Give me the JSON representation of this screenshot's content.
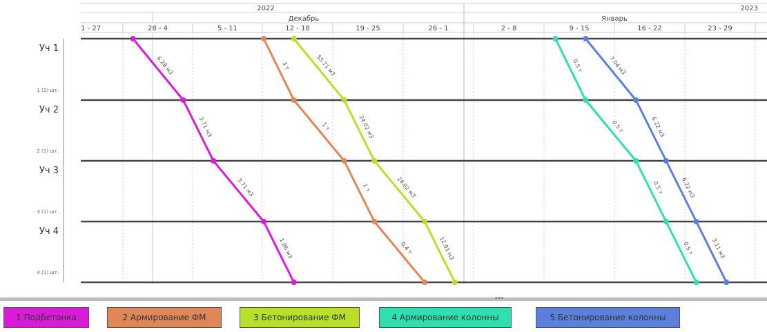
{
  "chart_data": {
    "type": "line",
    "subtype": "cyclogram",
    "timeline": {
      "years": [
        {
          "label": "2022"
        },
        {
          "label": "2023"
        }
      ],
      "months": [
        {
          "label": "Декабрь"
        },
        {
          "label": "Январь"
        }
      ],
      "weeks": [
        "1 - 27",
        "28 - 4",
        "5 - 11",
        "12 - 18",
        "19 - 25",
        "26 - 1",
        "2 - 8",
        "9 - 15",
        "16 - 22",
        "23 - 29"
      ]
    },
    "rows": [
      {
        "label": "Уч 1",
        "count": "1 (1) шт."
      },
      {
        "label": "Уч 2",
        "count": "2 (1) шт."
      },
      {
        "label": "Уч 3",
        "count": "3 (1) шт."
      },
      {
        "label": "Уч 4",
        "count": "4 (1) шт."
      }
    ],
    "series": [
      {
        "name": "1 Подбетонка",
        "color": "#d81cd8",
        "dates": [
          "2022-11-29",
          "2022-12-04",
          "2022-12-07",
          "2022-12-12",
          "2022-12-15"
        ],
        "labels": [
          "6.28 м3",
          "3.71 м3",
          "3.71 м3",
          "1.86 м3"
        ]
      },
      {
        "name": "2 Армирование ФМ",
        "color": "#e0875a",
        "dates": [
          "2022-12-12",
          "2022-12-15",
          "2022-12-20",
          "2022-12-23",
          "2022-12-28"
        ],
        "labels": [
          "3 т",
          "1 т",
          "1 т",
          "0.4 т"
        ]
      },
      {
        "name": "3 Бетонирование ФМ",
        "color": "#b8e02a",
        "dates": [
          "2022-12-15",
          "2022-12-20",
          "2022-12-23",
          "2022-12-28",
          "2022-12-31"
        ],
        "labels": [
          "55.71 м3",
          "24.02 м3",
          "24.02 м3",
          "12.01 м3"
        ]
      },
      {
        "name": "4 Армирование колонны",
        "color": "#2ee0b0",
        "dates": [
          "2023-01-10",
          "2023-01-13",
          "2023-01-18",
          "2023-01-21",
          "2023-01-24"
        ],
        "labels": [
          "0.5 т",
          "0.5 т",
          "0.5 т",
          "0.5 т"
        ]
      },
      {
        "name": "5 Бетонирование колонны",
        "color": "#5b7fdb",
        "dates": [
          "2023-01-13",
          "2023-01-18",
          "2023-01-21",
          "2023-01-24",
          "2023-01-27"
        ],
        "labels": [
          "7.04 м3",
          "6.22 м3",
          "6.22 м3",
          "3.11 м3"
        ]
      }
    ],
    "legend_placement": "bottom"
  },
  "splitter_grip": "•••"
}
